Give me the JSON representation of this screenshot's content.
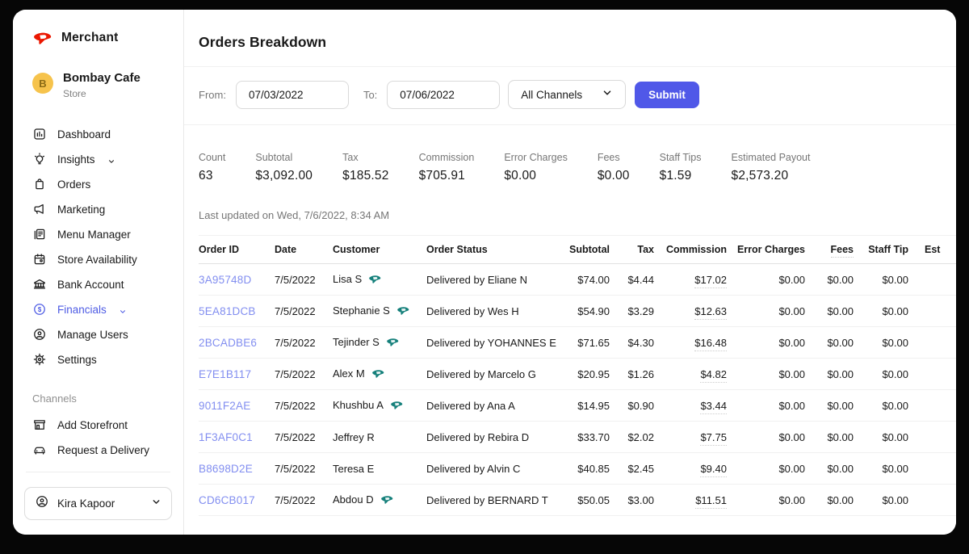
{
  "brand": {
    "logo_icon": "doordash-icon",
    "name": "Merchant"
  },
  "store": {
    "initial": "B",
    "name": "Bombay Cafe",
    "subtitle": "Store"
  },
  "sidebar": {
    "items": [
      {
        "label": "Dashboard",
        "icon": "dashboard-icon"
      },
      {
        "label": "Insights",
        "icon": "insights-icon",
        "chevron": true
      },
      {
        "label": "Orders",
        "icon": "orders-icon"
      },
      {
        "label": "Marketing",
        "icon": "marketing-icon"
      },
      {
        "label": "Menu Manager",
        "icon": "menu-manager-icon"
      },
      {
        "label": "Store Availability",
        "icon": "store-availability-icon"
      },
      {
        "label": "Bank Account",
        "icon": "bank-account-icon"
      },
      {
        "label": "Financials",
        "icon": "financials-icon",
        "chevron": true,
        "active": true
      },
      {
        "label": "Manage Users",
        "icon": "manage-users-icon"
      },
      {
        "label": "Settings",
        "icon": "settings-icon"
      }
    ],
    "channels_label": "Channels",
    "channel_items": [
      {
        "label": "Add Storefront",
        "icon": "storefront-icon"
      },
      {
        "label": "Request a Delivery",
        "icon": "delivery-car-icon"
      }
    ],
    "user": {
      "name": "Kira Kapoor",
      "icon": "user-circle-icon"
    }
  },
  "page": {
    "title": "Orders Breakdown"
  },
  "filters": {
    "from_label": "From:",
    "from_value": "07/03/2022",
    "to_label": "To:",
    "to_value": "07/06/2022",
    "channels_value": "All Channels",
    "submit_label": "Submit"
  },
  "summary": [
    {
      "label": "Count",
      "value": "63"
    },
    {
      "label": "Subtotal",
      "value": "$3,092.00"
    },
    {
      "label": "Tax",
      "value": "$185.52"
    },
    {
      "label": "Commission",
      "value": "$705.91"
    },
    {
      "label": "Error Charges",
      "value": "$0.00"
    },
    {
      "label": "Fees",
      "value": "$0.00"
    },
    {
      "label": "Staff Tips",
      "value": "$1.59"
    },
    {
      "label": "Estimated Payout",
      "value": "$2,573.20"
    }
  ],
  "last_updated": "Last updated on Wed, 7/6/2022, 8:34 AM",
  "table": {
    "columns": [
      {
        "label": "Order ID"
      },
      {
        "label": "Date"
      },
      {
        "label": "Customer"
      },
      {
        "label": "Order Status"
      },
      {
        "label": "Subtotal"
      },
      {
        "label": "Tax"
      },
      {
        "label": "Commission"
      },
      {
        "label": "Error Charges"
      },
      {
        "label": "Fees",
        "dotted": true
      },
      {
        "label": "Staff Tip"
      },
      {
        "label": "Est"
      }
    ],
    "rows": [
      {
        "order_id": "3A95748D",
        "date": "7/5/2022",
        "customer": "Lisa S",
        "badge": true,
        "status": "Delivered by Eliane N",
        "subtotal": "$74.00",
        "tax": "$4.44",
        "commission": "$17.02",
        "error_charges": "$0.00",
        "fees": "$0.00",
        "staff_tip": "$0.00"
      },
      {
        "order_id": "5EA81DCB",
        "date": "7/5/2022",
        "customer": "Stephanie S",
        "badge": true,
        "status": "Delivered by Wes H",
        "subtotal": "$54.90",
        "tax": "$3.29",
        "commission": "$12.63",
        "error_charges": "$0.00",
        "fees": "$0.00",
        "staff_tip": "$0.00"
      },
      {
        "order_id": "2BCADBE6",
        "date": "7/5/2022",
        "customer": "Tejinder S",
        "badge": true,
        "status": "Delivered by YOHANNES E",
        "subtotal": "$71.65",
        "tax": "$4.30",
        "commission": "$16.48",
        "error_charges": "$0.00",
        "fees": "$0.00",
        "staff_tip": "$0.00"
      },
      {
        "order_id": "E7E1B117",
        "date": "7/5/2022",
        "customer": "Alex M",
        "badge": true,
        "status": "Delivered by Marcelo G",
        "subtotal": "$20.95",
        "tax": "$1.26",
        "commission": "$4.82",
        "error_charges": "$0.00",
        "fees": "$0.00",
        "staff_tip": "$0.00"
      },
      {
        "order_id": "9011F2AE",
        "date": "7/5/2022",
        "customer": "Khushbu A",
        "badge": true,
        "status": "Delivered by Ana A",
        "subtotal": "$14.95",
        "tax": "$0.90",
        "commission": "$3.44",
        "error_charges": "$0.00",
        "fees": "$0.00",
        "staff_tip": "$0.00"
      },
      {
        "order_id": "1F3AF0C1",
        "date": "7/5/2022",
        "customer": "Jeffrey R",
        "badge": false,
        "status": "Delivered by Rebira D",
        "subtotal": "$33.70",
        "tax": "$2.02",
        "commission": "$7.75",
        "error_charges": "$0.00",
        "fees": "$0.00",
        "staff_tip": "$0.00"
      },
      {
        "order_id": "B8698D2E",
        "date": "7/5/2022",
        "customer": "Teresa E",
        "badge": false,
        "status": "Delivered by Alvin C",
        "subtotal": "$40.85",
        "tax": "$2.45",
        "commission": "$9.40",
        "error_charges": "$0.00",
        "fees": "$0.00",
        "staff_tip": "$0.00"
      },
      {
        "order_id": "CD6CB017",
        "date": "7/5/2022",
        "customer": "Abdou D",
        "badge": true,
        "status": "Delivered by BERNARD T",
        "subtotal": "$50.05",
        "tax": "$3.00",
        "commission": "$11.51",
        "error_charges": "$0.00",
        "fees": "$0.00",
        "staff_tip": "$0.00"
      }
    ]
  },
  "colors": {
    "brand_red": "#EB1700",
    "accent_indigo": "#4D5BE4",
    "submit_indigo": "#5058E8",
    "order_link": "#828EF0",
    "badge_teal": "#15807B",
    "avatar_yellow": "#F6C34C"
  }
}
